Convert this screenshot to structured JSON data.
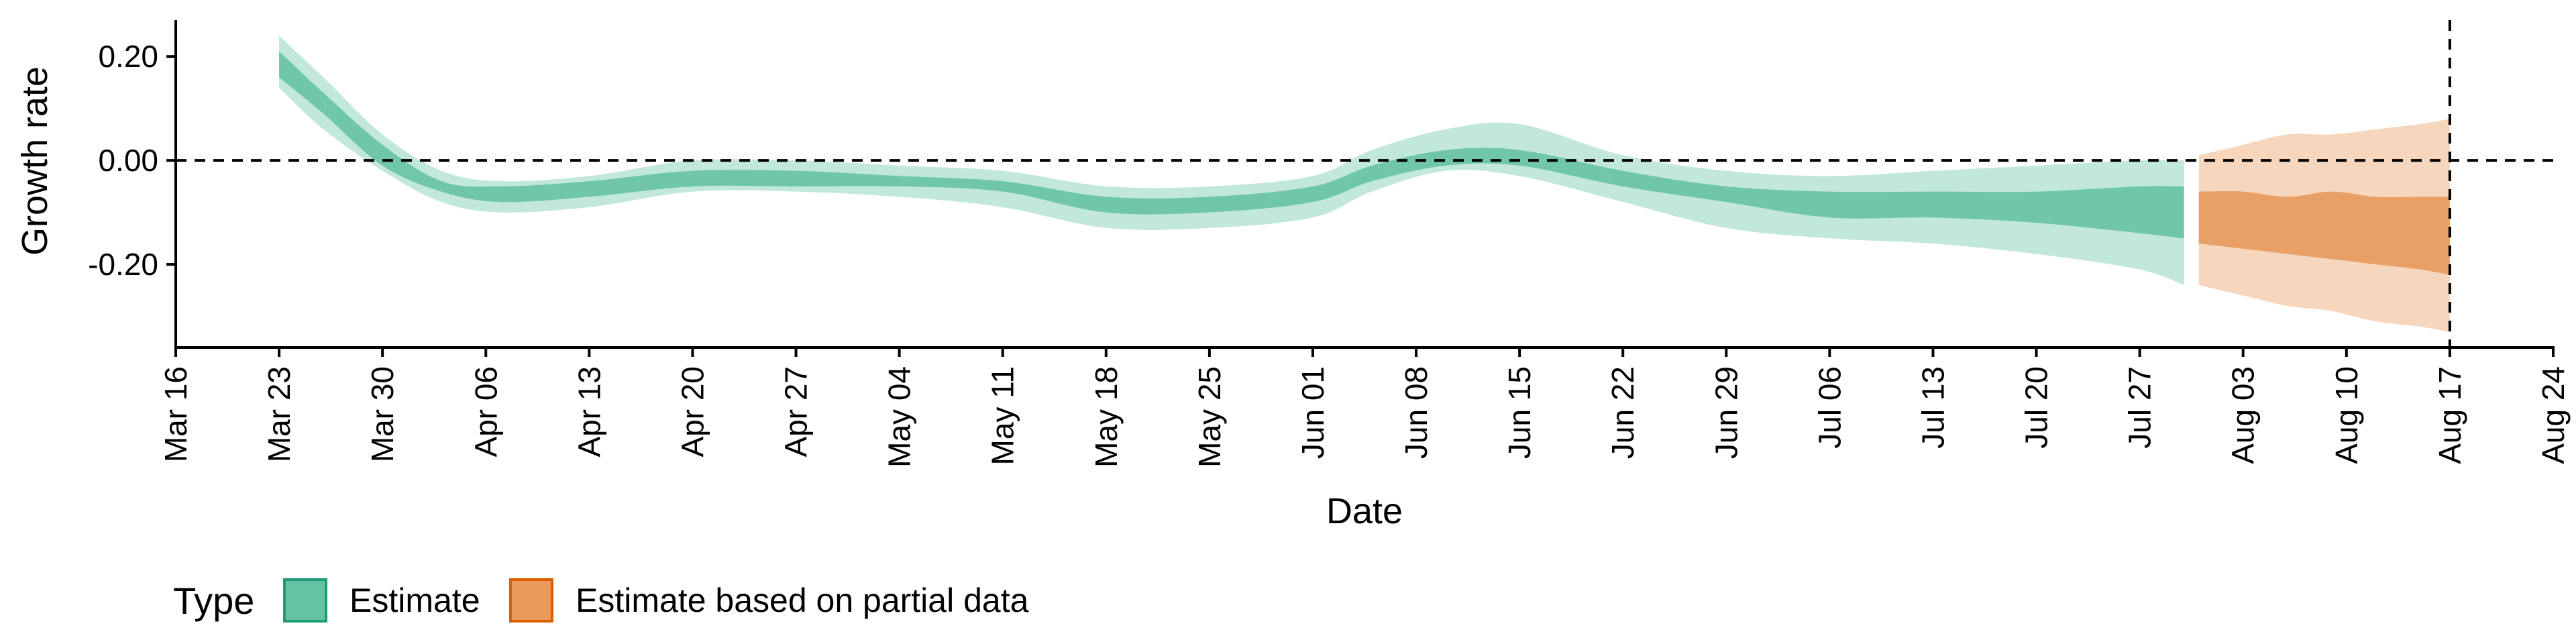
{
  "chart_data": {
    "type": "area",
    "xlabel": "Date",
    "ylabel": "Growth rate",
    "x_tick_labels": [
      "Mar 16",
      "Mar 23",
      "Mar 30",
      "Apr 06",
      "Apr 13",
      "Apr 20",
      "Apr 27",
      "May 04",
      "May 11",
      "May 18",
      "May 25",
      "Jun 01",
      "Jun 08",
      "Jun 15",
      "Jun 22",
      "Jun 29",
      "Jul 06",
      "Jul 13",
      "Jul 20",
      "Jul 27",
      "Aug 03",
      "Aug 10",
      "Aug 17",
      "Aug 24"
    ],
    "y_tick_labels": [
      "0.20",
      "0.00",
      "-0.20"
    ],
    "y_ticks": [
      0.2,
      0.0,
      -0.2
    ],
    "x_range": [
      "2020-03-16",
      "2020-08-24"
    ],
    "ylim": [
      -0.36,
      0.27
    ],
    "reference_lines": {
      "y": 0.0,
      "x": "2020-08-17"
    },
    "grid": false,
    "legend": {
      "title": "Type",
      "position": "bottom-left",
      "entries": [
        {
          "label": "Estimate",
          "color": "#66c2a5",
          "stroke": "#1b9e77"
        },
        {
          "label": "Estimate based on partial data",
          "color": "#e89a5c",
          "stroke": "#d95f02"
        }
      ]
    },
    "series": [
      {
        "name": "Estimate",
        "color": "#66c2a5",
        "x": [
          "2020-03-23",
          "2020-03-26",
          "2020-03-30",
          "2020-04-03",
          "2020-04-07",
          "2020-04-13",
          "2020-04-20",
          "2020-04-27",
          "2020-05-04",
          "2020-05-11",
          "2020-05-18",
          "2020-05-25",
          "2020-06-01",
          "2020-06-05",
          "2020-06-10",
          "2020-06-15",
          "2020-06-22",
          "2020-06-29",
          "2020-07-06",
          "2020-07-13",
          "2020-07-20",
          "2020-07-27",
          "2020-07-30"
        ],
        "median": [
          0.19,
          0.11,
          0.01,
          -0.05,
          -0.07,
          -0.06,
          -0.03,
          -0.03,
          -0.04,
          -0.05,
          -0.09,
          -0.09,
          -0.07,
          -0.02,
          0.01,
          0.0,
          -0.03,
          -0.07,
          -0.09,
          -0.09,
          -0.09,
          -0.09,
          -0.09
        ],
        "lower90": [
          0.14,
          0.06,
          -0.02,
          -0.08,
          -0.1,
          -0.09,
          -0.06,
          -0.06,
          -0.07,
          -0.09,
          -0.13,
          -0.13,
          -0.11,
          -0.06,
          -0.02,
          -0.03,
          -0.08,
          -0.13,
          -0.15,
          -0.16,
          -0.18,
          -0.21,
          -0.24
        ],
        "upper90": [
          0.24,
          0.16,
          0.05,
          -0.02,
          -0.04,
          -0.03,
          0.0,
          0.0,
          -0.01,
          -0.02,
          -0.05,
          -0.05,
          -0.03,
          0.02,
          0.06,
          0.07,
          0.01,
          -0.02,
          -0.03,
          -0.02,
          -0.01,
          0.0,
          0.0
        ],
        "lower50": [
          0.16,
          0.09,
          -0.01,
          -0.06,
          -0.08,
          -0.07,
          -0.05,
          -0.05,
          -0.05,
          -0.06,
          -0.1,
          -0.1,
          -0.08,
          -0.04,
          -0.01,
          -0.01,
          -0.05,
          -0.08,
          -0.11,
          -0.11,
          -0.12,
          -0.14,
          -0.15
        ],
        "upper50": [
          0.21,
          0.13,
          0.03,
          -0.04,
          -0.05,
          -0.04,
          -0.02,
          -0.02,
          -0.03,
          -0.04,
          -0.07,
          -0.07,
          -0.05,
          -0.01,
          0.02,
          0.02,
          -0.02,
          -0.05,
          -0.06,
          -0.06,
          -0.06,
          -0.05,
          -0.05
        ]
      },
      {
        "name": "Estimate based on partial data",
        "color": "#e89a5c",
        "x": [
          "2020-07-31",
          "2020-08-03",
          "2020-08-06",
          "2020-08-09",
          "2020-08-12",
          "2020-08-15",
          "2020-08-17"
        ],
        "median": [
          -0.11,
          -0.11,
          -0.12,
          -0.12,
          -0.13,
          -0.14,
          -0.14
        ],
        "lower90": [
          -0.24,
          -0.26,
          -0.28,
          -0.29,
          -0.31,
          -0.32,
          -0.33
        ],
        "upper90": [
          0.01,
          0.03,
          0.05,
          0.05,
          0.06,
          0.07,
          0.08
        ],
        "lower50": [
          -0.16,
          -0.17,
          -0.18,
          -0.19,
          -0.2,
          -0.21,
          -0.22
        ],
        "upper50": [
          -0.06,
          -0.06,
          -0.07,
          -0.06,
          -0.07,
          -0.07,
          -0.07
        ]
      }
    ]
  }
}
